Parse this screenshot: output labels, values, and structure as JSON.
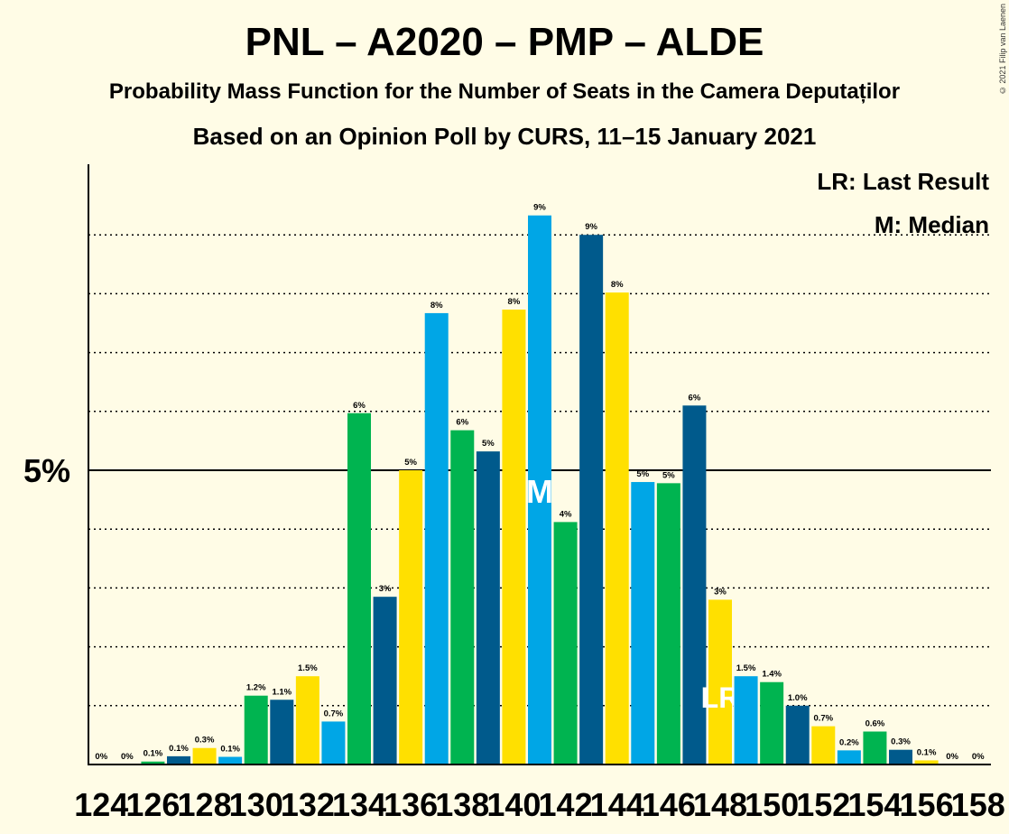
{
  "title": "PNL – A2020 – PMP – ALDE",
  "subtitle": "Probability Mass Function for the Number of Seats in the Camera Deputaților",
  "subtitle2": "Based on an Opinion Poll by CURS, 11–15 January 2021",
  "copyright": "© 2021 Filip van Laenen",
  "legend": {
    "lr": "LR: Last Result",
    "m": "M: Median"
  },
  "colors": {
    "cyan": "#00A6E6",
    "green": "#00B450",
    "navy": "#005A8C",
    "yellow": "#FFE000",
    "background": "#FFFCE6"
  },
  "chart_data": {
    "type": "bar",
    "ytick_label": "5%",
    "ytick_value": 5,
    "ylim": [
      0,
      10.2
    ],
    "grid": true,
    "x": [
      124,
      125,
      126,
      127,
      128,
      129,
      130,
      131,
      132,
      133,
      134,
      135,
      136,
      137,
      138,
      139,
      140,
      141,
      142,
      143,
      144,
      145,
      146,
      147,
      148,
      149,
      150,
      151,
      152,
      153,
      154,
      155,
      156,
      157,
      158
    ],
    "xtick_labels": [
      "124",
      "126",
      "128",
      "130",
      "132",
      "134",
      "136",
      "138",
      "140",
      "142",
      "144",
      "146",
      "148",
      "150",
      "152",
      "154",
      "156",
      "158"
    ],
    "values": [
      0,
      0,
      0.05,
      0.14,
      0.28,
      0.13,
      1.17,
      1.1,
      1.5,
      0.73,
      5.97,
      2.85,
      5.0,
      7.67,
      5.68,
      5.32,
      7.73,
      9.33,
      4.12,
      9.0,
      8.02,
      4.8,
      4.78,
      6.1,
      2.8,
      1.5,
      1.4,
      1.0,
      0.65,
      0.24,
      0.56,
      0.25,
      0.07,
      0,
      0
    ],
    "labels": [
      "0%",
      "0%",
      "0.1%",
      "0.1%",
      "0.3%",
      "0.1%",
      "1.2%",
      "1.1%",
      "1.5%",
      "0.7%",
      "6%",
      "3%",
      "5%",
      "8%",
      "6%",
      "5%",
      "8%",
      "9%",
      "4%",
      "9%",
      "8%",
      "5%",
      "5%",
      "6%",
      "3%",
      "1.5%",
      "1.4%",
      "1.0%",
      "0.7%",
      "0.2%",
      "0.6%",
      "0.3%",
      "0.1%",
      "0%",
      "0%"
    ],
    "bar_colors": [
      "cyan",
      "navy",
      "green",
      "navy",
      "yellow",
      "cyan",
      "green",
      "navy",
      "yellow",
      "cyan",
      "green",
      "navy",
      "yellow",
      "cyan",
      "green",
      "navy",
      "yellow",
      "cyan",
      "green",
      "navy",
      "yellow",
      "cyan",
      "green",
      "navy",
      "yellow",
      "cyan",
      "green",
      "navy",
      "yellow",
      "cyan",
      "green",
      "navy",
      "yellow",
      "cyan",
      "green"
    ],
    "median_seat": 141,
    "median_label": "M",
    "last_result_seat": 148,
    "last_result_label": "LR"
  }
}
